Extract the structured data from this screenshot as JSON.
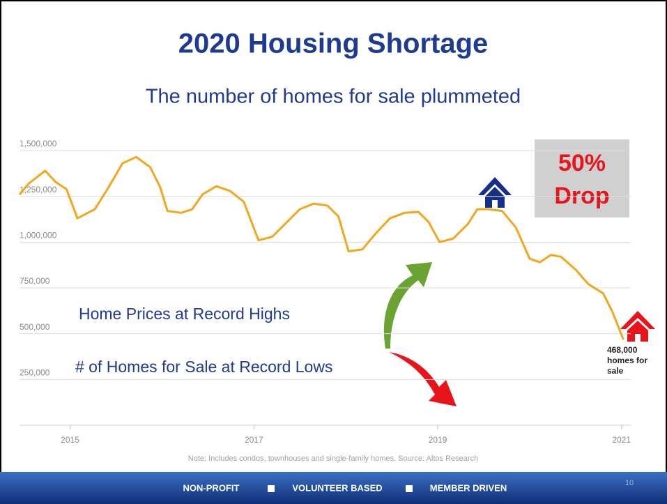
{
  "chart_data": {
    "type": "line",
    "title": "2020 Housing Shortage",
    "subtitle": "The number of homes for sale plummeted",
    "x": [
      2014.45,
      2014.55,
      2014.73,
      2014.84,
      2014.96,
      2015.08,
      2015.27,
      2015.42,
      2015.57,
      2015.72,
      2015.87,
      2015.98,
      2016.06,
      2016.21,
      2016.33,
      2016.44,
      2016.59,
      2016.74,
      2016.89,
      2017.05,
      2017.2,
      2017.36,
      2017.5,
      2017.65,
      2017.8,
      2017.92,
      2018.03,
      2018.18,
      2018.33,
      2018.48,
      2018.64,
      2018.79,
      2018.9,
      2019.02,
      2019.17,
      2019.33,
      2019.43,
      2019.55,
      2019.7,
      2019.85,
      2020.0,
      2020.11,
      2020.23,
      2020.34,
      2020.5,
      2020.64,
      2020.8,
      2020.9,
      2021.02
    ],
    "values": [
      1260000,
      1320000,
      1390000,
      1330000,
      1290000,
      1130000,
      1180000,
      1300000,
      1430000,
      1465000,
      1410000,
      1300000,
      1170000,
      1160000,
      1180000,
      1260000,
      1305000,
      1280000,
      1220000,
      1010000,
      1030000,
      1110000,
      1180000,
      1210000,
      1200000,
      1140000,
      950000,
      960000,
      1050000,
      1130000,
      1160000,
      1165000,
      1110000,
      1000000,
      1020000,
      1100000,
      1180000,
      1180000,
      1170000,
      1080000,
      910000,
      890000,
      930000,
      920000,
      850000,
      770000,
      720000,
      620000,
      468000
    ],
    "color": "#f2a61c",
    "xlim": [
      2014.45,
      2021.1
    ],
    "xticks": [
      2015,
      2017,
      2019,
      2021
    ],
    "ylim": [
      0,
      1500000
    ],
    "yticks": [
      {
        "value": 250000,
        "label": "250,000"
      },
      {
        "value": 500000,
        "label": "500,000"
      },
      {
        "value": 750000,
        "label": "750,000"
      },
      {
        "value": 1000000,
        "label": "1,000,000"
      },
      {
        "value": 1250000,
        "label": "1,250,000"
      },
      {
        "value": 1500000,
        "label": "1,500,000"
      }
    ],
    "grid": true,
    "annotations": {
      "drop": [
        "50%",
        "Drop"
      ],
      "prices": "Home Prices at Record Highs",
      "lows": "# of Homes for Sale at Record Lows",
      "end_label": [
        "468,000",
        "homes for",
        "sale"
      ],
      "note": "Note: Includes condos, townhouses and single-family homes. Source: Altos Research"
    }
  },
  "footer": {
    "items": [
      "NON-PROFIT",
      "VOLUNTEER BASED",
      "MEMBER DRIVEN"
    ],
    "page": "10"
  }
}
